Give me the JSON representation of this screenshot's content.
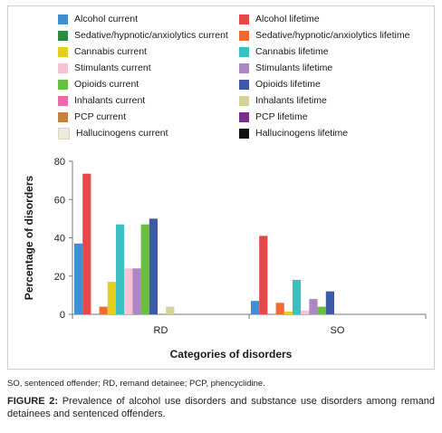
{
  "footnote": "SO, sentenced offender; RD, remand detainee; PCP, phencyclidine.",
  "caption": {
    "lead": "FIGURE 2:",
    "text": "Prevalence of alcohol use disorders and substance use disorders among remand detainees and sentenced offenders."
  },
  "chart_data": {
    "type": "bar",
    "title": "",
    "xlabel": "Categories of disorders",
    "ylabel": "Percentage of disorders",
    "ylim": [
      0,
      80
    ],
    "yticks": [
      0,
      20,
      40,
      60,
      80
    ],
    "categories": [
      "RD",
      "SO"
    ],
    "grid": false,
    "legend_position": "top",
    "series": [
      {
        "name": "Alcohol current",
        "color": "#3f8fd2",
        "values": [
          37,
          7
        ]
      },
      {
        "name": "Alcohol lifetime",
        "color": "#e8474a",
        "values": [
          73.5,
          41
        ]
      },
      {
        "name": "Sedative/hypnotic/anxiolytics current",
        "color": "#2e8b3e",
        "values": [
          0,
          0
        ]
      },
      {
        "name": "Sedative/hypnotic/anxiolytics lifetime",
        "color": "#ef6a35",
        "values": [
          4,
          6
        ]
      },
      {
        "name": "Cannabis current",
        "color": "#e3cf1c",
        "values": [
          17,
          1.5
        ]
      },
      {
        "name": "Cannabis lifetime",
        "color": "#3cbfc3",
        "values": [
          47,
          18
        ]
      },
      {
        "name": "Stimulants current",
        "color": "#f7c2d6",
        "values": [
          24,
          2
        ]
      },
      {
        "name": "Stimulants lifetime",
        "color": "#ad86c4",
        "values": [
          24,
          8
        ]
      },
      {
        "name": "Opioids current",
        "color": "#6bbf3e",
        "values": [
          47,
          4
        ]
      },
      {
        "name": "Opioids lifetime",
        "color": "#3c5aa8",
        "values": [
          50,
          12
        ]
      },
      {
        "name": "Inhalants current",
        "color": "#ec6aa7",
        "values": [
          0,
          0
        ]
      },
      {
        "name": "Inhalants lifetime",
        "color": "#d4d39c",
        "values": [
          4,
          0
        ]
      },
      {
        "name": "PCP current",
        "color": "#c6813f",
        "values": [
          0,
          0
        ]
      },
      {
        "name": "PCP lifetime",
        "color": "#7b2e8a",
        "values": [
          0,
          0
        ]
      },
      {
        "name": "Hallucinogens current",
        "color": "#ecebdc",
        "values": [
          0,
          0
        ]
      },
      {
        "name": "Hallucinogens lifetime",
        "color": "#111111",
        "values": [
          0,
          0
        ]
      }
    ]
  }
}
